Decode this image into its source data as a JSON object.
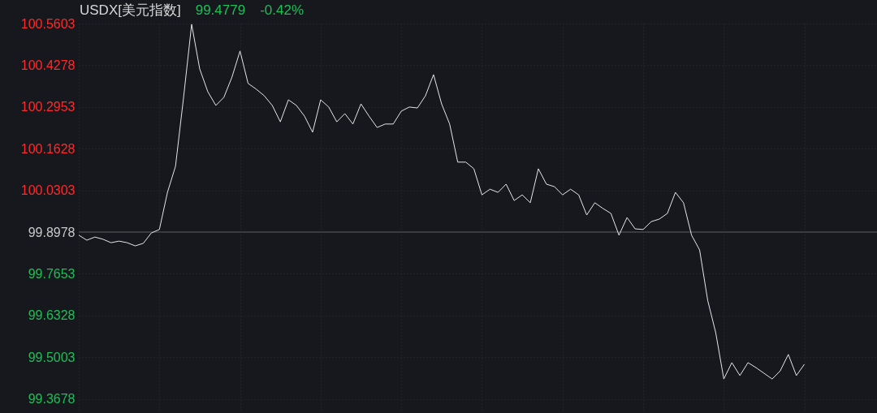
{
  "chart_data": {
    "type": "line",
    "title": "USDX[美元指数]",
    "annotations": [
      "99.4779",
      "-0.42%"
    ],
    "categories": [
      null,
      null,
      null,
      null,
      null,
      null,
      null,
      null,
      null,
      null,
      null,
      null,
      null,
      null,
      null,
      null,
      null,
      null,
      null,
      null,
      null,
      null,
      null,
      null,
      null,
      null,
      null,
      null,
      null,
      null,
      null,
      null,
      null,
      null,
      null,
      null,
      null,
      null,
      null,
      null,
      null,
      null,
      null,
      null,
      null,
      null,
      null,
      null,
      null,
      null,
      null,
      null,
      null,
      null,
      null,
      null,
      null,
      null,
      null,
      null,
      null,
      null,
      null,
      null,
      null,
      null,
      null,
      null,
      null,
      null,
      null,
      null,
      null,
      null,
      null,
      null,
      null,
      null,
      null,
      null,
      null,
      null,
      null,
      null,
      null,
      null,
      null,
      null,
      null,
      null,
      null,
      null,
      null,
      null,
      null,
      null,
      null,
      null,
      null,
      null
    ],
    "series": [
      {
        "color": "#e6e6e6",
        "values": [
          99.888,
          99.872,
          99.882,
          99.875,
          99.864,
          99.869,
          99.864,
          99.854,
          99.862,
          99.895,
          99.906,
          100.024,
          100.107,
          100.326,
          100.558,
          100.416,
          100.344,
          100.3,
          100.326,
          100.39,
          100.473,
          100.37,
          100.352,
          100.331,
          100.3,
          100.248,
          100.318,
          100.3,
          100.266,
          100.215,
          100.318,
          100.295,
          100.248,
          100.274,
          100.241,
          100.305,
          100.266,
          100.23,
          100.241,
          100.241,
          100.282,
          100.295,
          100.292,
          100.331,
          100.398,
          100.305,
          100.241,
          100.12,
          100.12,
          100.099,
          100.016,
          100.034,
          100.024,
          100.05,
          99.998,
          100.016,
          99.991,
          100.099,
          100.05,
          100.042,
          100.016,
          100.034,
          100.016,
          99.952,
          99.991,
          99.973,
          99.957,
          99.888,
          99.944,
          99.908,
          99.906,
          99.931,
          99.939,
          99.957,
          100.024,
          99.991,
          99.888,
          99.841,
          99.681,
          99.578,
          99.431,
          99.483,
          99.442,
          99.483,
          99.467,
          99.449,
          99.431,
          99.457,
          99.509,
          99.442,
          99.478,
          null,
          null,
          null,
          null,
          null,
          null,
          null,
          null,
          null
        ]
      }
    ],
    "ylim": [
      99.323,
      100.5603
    ],
    "yticks": [
      99.3678,
      99.5003,
      99.6328,
      99.7653,
      99.8978,
      100.0303,
      100.1628,
      100.2953,
      100.4278,
      100.5603
    ],
    "ref_lines": [
      {
        "axis": "y",
        "value": 99.8978,
        "color": "#3a3b40"
      }
    ],
    "grid": true,
    "tick_labels": "y",
    "marker": "none",
    "line_style": "solid"
  }
}
